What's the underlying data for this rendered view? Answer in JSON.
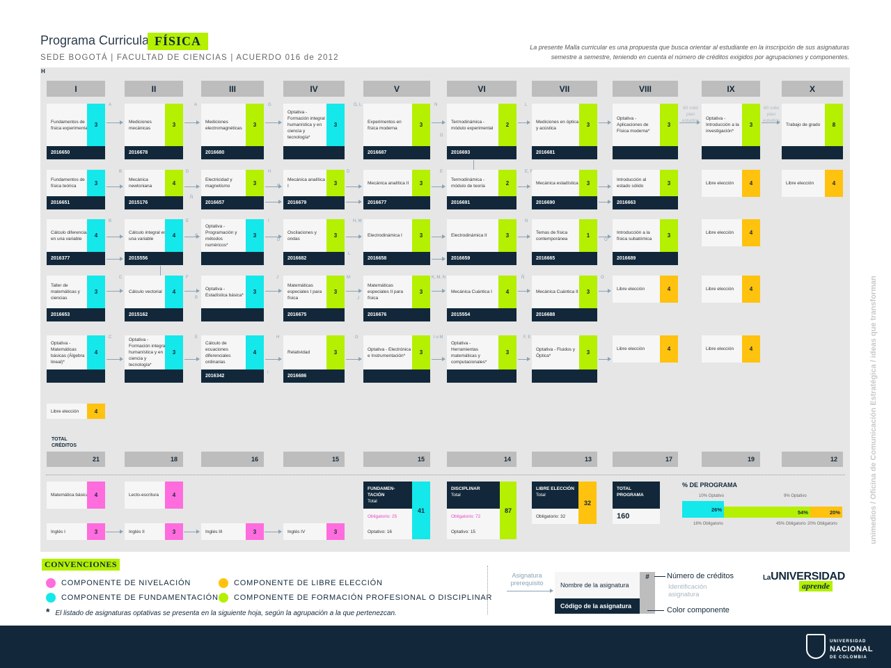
{
  "header": {
    "title": "Programa Curricular",
    "program": "FÍSICA",
    "subtitle": "SEDE BOGOTÁ | FACULTAD DE CIENCIAS | ACUERDO 016 de 2012",
    "intro_line1": "La presente Malla curricular es una propuesta que busca orientar al estudiante en la inscripción de sus asignaturas",
    "intro_line2": "semestre a semestre, teniendo en cuenta el número de créditos exigidos por agrupaciones y componentes.",
    "h_mark": "H"
  },
  "colors": {
    "fundamentacion": "#14e8ea",
    "disciplinar": "#b4f000",
    "libre": "#ffc20e",
    "nivelacion": "#ff6cde",
    "navy": "#12283a"
  },
  "semesters": [
    "I",
    "II",
    "III",
    "IV",
    "V",
    "VI",
    "VII",
    "VIII",
    "IX",
    "X"
  ],
  "courses": {
    "r1": [
      {
        "name": "Fundamentos de física experimental",
        "credits": "3",
        "code": "2016650",
        "comp": "fund"
      },
      {
        "name": "Mediciones mecánicas",
        "credits": "3",
        "code": "2016678",
        "comp": "disc"
      },
      {
        "name": "Mediciones electromagnéticas",
        "credits": "3",
        "code": "2016680",
        "comp": "disc"
      },
      {
        "name": "Optativa - Formación integral humanística y en ciencia y tecnología*",
        "credits": "3",
        "code": "",
        "comp": "fund"
      },
      {
        "name": "Experimentos en física moderna",
        "credits": "3",
        "code": "2016687",
        "comp": "disc"
      },
      {
        "name": "Termodinámica - módulo experimental",
        "credits": "2",
        "code": "2016693",
        "comp": "disc"
      },
      {
        "name": "Mediciones en óptica y acústica",
        "credits": "3",
        "code": "2016681",
        "comp": "disc"
      },
      {
        "name": "Optativa - Aplicaciones de Física moderna*",
        "credits": "3",
        "code": "",
        "comp": "disc"
      },
      {
        "name": "Optativa - Introducción a la investigación*",
        "credits": "3",
        "code": "",
        "comp": "disc"
      },
      {
        "name": "Trabajo de grado",
        "credits": "8",
        "code": "",
        "comp": "disc"
      }
    ],
    "r2": [
      {
        "name": "Fundamentos de física teórica",
        "credits": "3",
        "code": "2016651",
        "comp": "fund"
      },
      {
        "name": "Mecánica newtoniana",
        "credits": "4",
        "code": "2015176",
        "comp": "disc"
      },
      {
        "name": "Electricidad y magnetismo",
        "credits": "3",
        "code": "2016657",
        "comp": "disc"
      },
      {
        "name": "Mecánica analítica I",
        "credits": "3",
        "code": "2016679",
        "comp": "disc"
      },
      {
        "name": "Mecánica analítica II",
        "credits": "3",
        "code": "2016677",
        "comp": "disc"
      },
      {
        "name": "Termodinámica - módulo de teoría",
        "credits": "2",
        "code": "2016691",
        "comp": "disc"
      },
      {
        "name": "Mecánica estadística",
        "credits": "3",
        "code": "2016690",
        "comp": "disc"
      },
      {
        "name": "Introducción al estado sólido",
        "credits": "3",
        "code": "2016663",
        "comp": "disc"
      },
      {
        "name": "Libre elección",
        "credits": "4",
        "code": "",
        "comp": "libre"
      },
      {
        "name": "Libre elección",
        "credits": "4",
        "code": "",
        "comp": "libre"
      }
    ],
    "r3": [
      {
        "name": "Cálculo diferencial en una variable",
        "credits": "4",
        "code": "2016377",
        "comp": "fund"
      },
      {
        "name": "Cálculo integral en una variable",
        "credits": "4",
        "code": "2015556",
        "comp": "fund"
      },
      {
        "name": "Optativa - Programación y métodos numéricos*",
        "credits": "3",
        "code": "",
        "comp": "fund"
      },
      {
        "name": "Oscilaciones y ondas",
        "credits": "3",
        "code": "2016682",
        "comp": "disc"
      },
      {
        "name": "Electrodinámica I",
        "credits": "3",
        "code": "2016658",
        "comp": "disc"
      },
      {
        "name": "Electrodinámica II",
        "credits": "3",
        "code": "2016659",
        "comp": "disc"
      },
      {
        "name": "Temas de física contemporánea",
        "credits": "1",
        "code": "2016665",
        "comp": "disc"
      },
      {
        "name": "Introducción a la física subatómica",
        "credits": "3",
        "code": "2016689",
        "comp": "disc"
      },
      {
        "name": "Libre elección",
        "credits": "4",
        "code": "",
        "comp": "libre"
      }
    ],
    "r4": [
      {
        "name": "Taller de matemáticas y ciencias",
        "credits": "3",
        "code": "2016653",
        "comp": "fund"
      },
      {
        "name": "Cálculo vectorial",
        "credits": "4",
        "code": "2015162",
        "comp": "fund"
      },
      {
        "name": "Optativa - Estadística básica*",
        "credits": "3",
        "code": "",
        "comp": "fund"
      },
      {
        "name": "Matemáticas especiales I para física",
        "credits": "3",
        "code": "2016675",
        "comp": "disc"
      },
      {
        "name": "Matemáticas especiales II para física",
        "credits": "3",
        "code": "2016676",
        "comp": "disc"
      },
      {
        "name": "Mecánica Cuántica I",
        "credits": "4",
        "code": "2015554",
        "comp": "disc"
      },
      {
        "name": "Mecánica Cuántica II",
        "credits": "3",
        "code": "2016688",
        "comp": "disc"
      },
      {
        "name": "Libre elección",
        "credits": "4",
        "code": "",
        "comp": "libre"
      },
      {
        "name": "Libre elección",
        "credits": "4",
        "code": "",
        "comp": "libre"
      }
    ],
    "r5": [
      {
        "name": "Optativa - Matemáticas básicas (Álgebra lineal)*",
        "credits": "4",
        "code": "",
        "comp": "fund"
      },
      {
        "name": "Optativa - Formación integral humanística y en ciencia y tecnología*",
        "credits": "3",
        "code": "",
        "comp": "fund"
      },
      {
        "name": "Cálculo de ecuaciones diferenciales ordinarias",
        "credits": "4",
        "code": "2016342",
        "comp": "fund"
      },
      {
        "name": "Relatividad",
        "credits": "3",
        "code": "2016686",
        "comp": "disc"
      },
      {
        "name": "Optativa - Electrónica e Instrumentación*",
        "credits": "3",
        "code": "",
        "comp": "disc"
      },
      {
        "name": "Optativa - Herramientas matemáticas y computacionales*",
        "credits": "3",
        "code": "",
        "comp": "disc"
      },
      {
        "name": "Optativa - Fluidos y Óptica*",
        "credits": "3",
        "code": "",
        "comp": "disc"
      },
      {
        "name": "Libre elección",
        "credits": "4",
        "code": "",
        "comp": "libre"
      },
      {
        "name": "Libre elección",
        "credits": "4",
        "code": "",
        "comp": "libre"
      }
    ],
    "r6": [
      {
        "name": "Libre elección",
        "credits": "4",
        "code": "",
        "comp": "libre"
      }
    ]
  },
  "credits_note": "60 créd plan estudios",
  "totals": {
    "label": "TOTAL CRÉDITOS",
    "values": [
      "21",
      "18",
      "16",
      "15",
      "15",
      "14",
      "13",
      "17",
      "19",
      "12"
    ]
  },
  "nivelacion": [
    {
      "name": "Matemática básica",
      "credits": "4"
    },
    {
      "name": "Lecto-escritura",
      "credits": "4"
    },
    {
      "name": "Inglés I",
      "credits": "3"
    },
    {
      "name": "Inglés II",
      "credits": "3"
    },
    {
      "name": "Inglés III",
      "credits": "3"
    },
    {
      "name": "Inglés IV",
      "credits": "3"
    }
  ],
  "summary": {
    "fund": {
      "title": "FUNDAMEN-TACIÓN",
      "sub": "Total",
      "obligatorio": "Obligatorio: 25",
      "optativo": "Optativo: 16",
      "total": "41"
    },
    "disc": {
      "title": "DISCIPLINAR",
      "sub": "Total",
      "obligatorio": "Obligatorio: 72",
      "optativo": "Optativo: 15",
      "total": "87"
    },
    "libre": {
      "title": "LIBRE ELECCIÓN",
      "sub": "Total",
      "obligatorio": "Obligatorio: 32",
      "total": "32"
    },
    "program": {
      "title": "TOTAL PROGRAMA",
      "total": "160"
    }
  },
  "percentages": {
    "title": "% DE PROGRAMA",
    "fund_opt": "10% Optativo",
    "disc_opt": "9% Optativo",
    "fund": "26%",
    "disc": "54%",
    "libre": "20%",
    "fund_obl": "16% Obligatorio",
    "disc_obl": "45% Obligatorio",
    "libre_obl": "20% Obligatorio",
    "fund_value": 26,
    "disc_value": 54,
    "libre_value": 20
  },
  "conventions": {
    "title": "CONVENCIONES",
    "niv": "COMPONENTE DE NIVELACIÓN",
    "fund": "COMPONENTE DE FUNDAMENTACIÓN",
    "libre": "COMPONENTE DE LIBRE ELECCIÓN",
    "disc": "COMPONENTE DE FORMACIÓN PROFESIONAL O DISCIPLINAR",
    "note_star": "*",
    "note": "El listado de asignaturas optativas se presenta en la siguiente hoja, según la agrupación a la que pertenezcan."
  },
  "legend": {
    "prereq": "Asignatura prerequisito",
    "name": "Nombre de la asignatura",
    "hash": "#",
    "code": "Código de la asignatura",
    "credits": "Número de créditos",
    "ident": "Identificación asignatura",
    "color": "Color componente"
  },
  "brand": {
    "la": "La",
    "universidad": "UNIVERSIDAD",
    "aprende": "aprende",
    "side": "unimedios / Oficina de Comunicación Estratégica / ideas que transforman",
    "un1": "UNIVERSIDAD",
    "un2": "NACIONAL",
    "un3": "DE COLOMBIA"
  },
  "letters": [
    "A",
    "A",
    "G",
    "G, L",
    "N",
    "L",
    "B",
    "D",
    "H",
    "D",
    "E",
    "E, F",
    "H",
    "Ñ",
    "B",
    "E",
    "C",
    "I",
    "D",
    "H, M",
    "L",
    "N",
    "O",
    "C",
    "F",
    "B",
    "J",
    "M",
    "J",
    "K, M, N",
    "Ñ",
    "O",
    "C",
    "E",
    "H",
    "I",
    "G",
    "I o M",
    "F, E",
    "G"
  ]
}
